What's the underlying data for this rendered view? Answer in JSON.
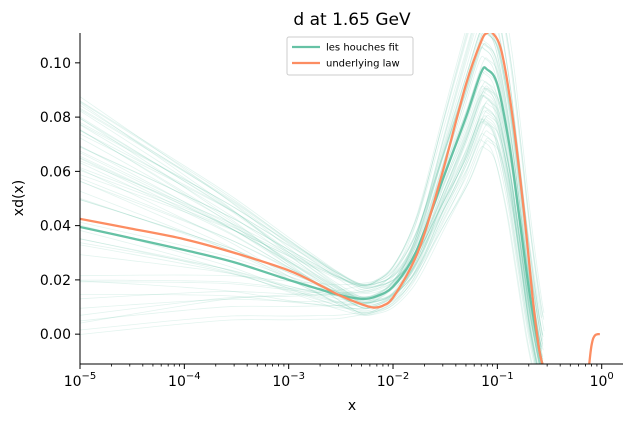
{
  "chart_data": {
    "type": "line",
    "title": "d at 1.65 GeV",
    "xlabel": "x",
    "ylabel": "xd(x)",
    "xscale": "log",
    "xlim": [
      1e-05,
      1.6
    ],
    "ylim": [
      -0.011,
      0.111
    ],
    "grid": false,
    "legend_position": "top-center",
    "x_ticks": [
      {
        "value": 1e-05,
        "base": "10",
        "exp": "−5"
      },
      {
        "value": 0.0001,
        "base": "10",
        "exp": "−4"
      },
      {
        "value": 0.001,
        "base": "10",
        "exp": "−3"
      },
      {
        "value": 0.01,
        "base": "10",
        "exp": "−2"
      },
      {
        "value": 0.1,
        "base": "10",
        "exp": "−1"
      },
      {
        "value": 1,
        "base": "10",
        "exp": "0"
      }
    ],
    "y_ticks": [
      {
        "value": 0.0,
        "label": "0.00"
      },
      {
        "value": 0.02,
        "label": "0.02"
      },
      {
        "value": 0.04,
        "label": "0.04"
      },
      {
        "value": 0.06,
        "label": "0.06"
      },
      {
        "value": 0.08,
        "label": "0.08"
      },
      {
        "value": 0.1,
        "label": "0.10"
      }
    ],
    "replica_band": {
      "count": 60,
      "color": "#66c2a5",
      "opacity": 0.18
    },
    "series": [
      {
        "name": "les houches fit",
        "color": "#66c2a5",
        "x": [
          1e-05,
          3e-05,
          0.0001,
          0.0003,
          0.001,
          0.002,
          0.003,
          0.005,
          0.007,
          0.01,
          0.015,
          0.02,
          0.03,
          0.05,
          0.07,
          0.08,
          0.1,
          0.13,
          0.16,
          0.2,
          0.25,
          0.27
        ],
        "y": [
          0.0395,
          0.0355,
          0.031,
          0.0265,
          0.02,
          0.0165,
          0.0145,
          0.013,
          0.014,
          0.0175,
          0.027,
          0.038,
          0.057,
          0.08,
          0.0965,
          0.0975,
          0.092,
          0.07,
          0.045,
          0.017,
          -0.005,
          -0.011
        ]
      },
      {
        "name": "underlying law",
        "color": "#fc8d62",
        "x": [
          1e-05,
          3e-05,
          0.0001,
          0.0003,
          0.001,
          0.002,
          0.003,
          0.005,
          0.0065,
          0.008,
          0.01,
          0.015,
          0.02,
          0.03,
          0.05,
          0.07,
          0.08,
          0.09,
          0.11,
          0.14,
          0.18,
          0.22,
          0.25,
          0.27
        ],
        "y": [
          0.0425,
          0.039,
          0.035,
          0.03,
          0.0235,
          0.018,
          0.0145,
          0.011,
          0.0098,
          0.0105,
          0.0135,
          0.025,
          0.037,
          0.06,
          0.092,
          0.108,
          0.111,
          0.111,
          0.104,
          0.08,
          0.045,
          0.012,
          -0.005,
          -0.011
        ]
      },
      {
        "name": "",
        "color": "#fc8d62",
        "x": [
          0.76,
          0.78,
          0.8,
          0.83,
          0.87,
          0.92,
          0.96
        ],
        "y": [
          -0.011,
          -0.007,
          -0.004,
          -0.0015,
          -0.0003,
          0.0,
          0.0
        ]
      }
    ],
    "legend": [
      {
        "label": "les houches fit",
        "color": "#66c2a5"
      },
      {
        "label": "underlying law",
        "color": "#fc8d62"
      }
    ]
  }
}
